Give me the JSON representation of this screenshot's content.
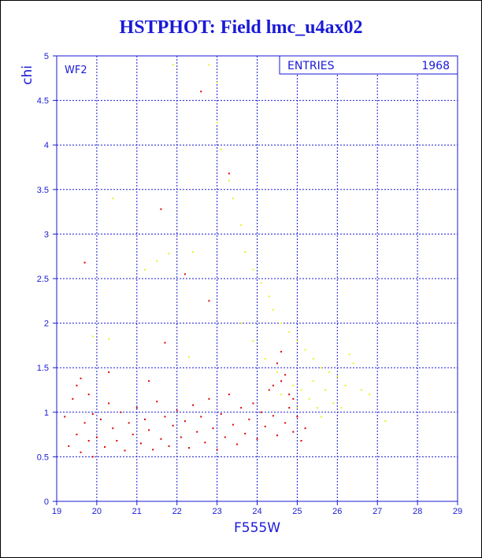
{
  "title": "HSTPHOT: Field lmc_u4ax02",
  "colors": {
    "axis": "#1a1ad6",
    "grid": "#1a1ad6",
    "series_primary": "#dd0000",
    "series_secondary": "#eeee22",
    "title": "#1a1ad6"
  },
  "chart_data": {
    "type": "scatter",
    "title": "HSTPHOT: Field lmc_u4ax02",
    "xlabel": "F555W",
    "ylabel": "chi",
    "xlim": [
      19,
      29
    ],
    "ylim": [
      0,
      5
    ],
    "xticks": [
      "19",
      "20",
      "21",
      "22",
      "23",
      "24",
      "25",
      "26",
      "27",
      "28",
      "29"
    ],
    "yticks": [
      "0",
      "0.5",
      "1",
      "1.5",
      "2",
      "2.5",
      "3",
      "3.5",
      "4",
      "4.5",
      "5"
    ],
    "grid": true,
    "annotation": "WF2",
    "stats_box": {
      "label": "ENTRIES",
      "value": "1968"
    },
    "series": [
      {
        "color": "#dd0000",
        "points": [
          [
            19.2,
            0.95
          ],
          [
            19.3,
            0.62
          ],
          [
            19.4,
            1.15
          ],
          [
            19.5,
            0.75
          ],
          [
            19.5,
            1.3
          ],
          [
            19.6,
            0.55
          ],
          [
            19.7,
            0.88
          ],
          [
            19.8,
            0.68
          ],
          [
            19.8,
            1.2
          ],
          [
            19.9,
            0.98
          ],
          [
            19.9,
            0.5
          ],
          [
            20.0,
            0.72
          ],
          [
            20.1,
            0.92
          ],
          [
            20.2,
            0.61
          ],
          [
            20.3,
            1.1
          ],
          [
            20.4,
            0.82
          ],
          [
            20.5,
            0.68
          ],
          [
            20.6,
            1.0
          ],
          [
            20.7,
            0.57
          ],
          [
            20.8,
            0.88
          ],
          [
            20.9,
            0.75
          ],
          [
            21.0,
            1.05
          ],
          [
            21.1,
            0.65
          ],
          [
            21.2,
            0.92
          ],
          [
            21.3,
            0.8
          ],
          [
            21.4,
            0.58
          ],
          [
            21.5,
            1.12
          ],
          [
            21.6,
            0.7
          ],
          [
            21.7,
            0.95
          ],
          [
            21.8,
            0.62
          ],
          [
            21.9,
            0.85
          ],
          [
            22.0,
            1.02
          ],
          [
            22.1,
            0.72
          ],
          [
            22.2,
            0.9
          ],
          [
            22.3,
            0.6
          ],
          [
            22.4,
            1.08
          ],
          [
            22.5,
            0.78
          ],
          [
            22.6,
            0.95
          ],
          [
            22.7,
            0.66
          ],
          [
            22.8,
            1.15
          ],
          [
            22.9,
            0.82
          ],
          [
            23.0,
            0.58
          ],
          [
            23.1,
            0.98
          ],
          [
            23.2,
            0.72
          ],
          [
            23.3,
            1.2
          ],
          [
            23.4,
            0.86
          ],
          [
            23.5,
            0.64
          ],
          [
            23.6,
            1.05
          ],
          [
            23.7,
            0.76
          ],
          [
            23.8,
            0.92
          ],
          [
            23.9,
            1.1
          ],
          [
            24.0,
            0.7
          ],
          [
            24.1,
            1.0
          ],
          [
            24.2,
            0.84
          ],
          [
            24.3,
            1.25
          ],
          [
            24.4,
            0.96
          ],
          [
            24.5,
            0.74
          ],
          [
            24.6,
            1.35
          ],
          [
            24.7,
            0.88
          ],
          [
            24.8,
            1.05
          ],
          [
            24.9,
            0.78
          ],
          [
            25.0,
            0.95
          ],
          [
            25.1,
            0.68
          ],
          [
            25.2,
            0.82
          ],
          [
            24.5,
            1.55
          ],
          [
            24.6,
            1.68
          ],
          [
            24.7,
            1.42
          ],
          [
            24.8,
            1.2
          ],
          [
            24.4,
            1.3
          ],
          [
            24.9,
            1.15
          ],
          [
            19.7,
            2.68
          ],
          [
            21.6,
            3.28
          ],
          [
            22.6,
            4.6
          ],
          [
            22.8,
            2.25
          ],
          [
            23.3,
            3.68
          ],
          [
            21.7,
            1.78
          ],
          [
            22.2,
            2.55
          ],
          [
            19.6,
            1.38
          ],
          [
            20.3,
            1.45
          ],
          [
            21.3,
            1.35
          ]
        ]
      },
      {
        "color": "#eeee22",
        "points": [
          [
            22.8,
            4.9
          ],
          [
            23.0,
            4.25
          ],
          [
            23.1,
            3.95
          ],
          [
            23.3,
            3.6
          ],
          [
            23.4,
            3.4
          ],
          [
            23.6,
            3.1
          ],
          [
            23.7,
            2.8
          ],
          [
            23.9,
            2.6
          ],
          [
            24.1,
            2.45
          ],
          [
            24.3,
            2.3
          ],
          [
            24.4,
            2.15
          ],
          [
            24.6,
            2.0
          ],
          [
            24.8,
            1.9
          ],
          [
            25.0,
            1.8
          ],
          [
            25.2,
            1.7
          ],
          [
            25.4,
            1.6
          ],
          [
            25.6,
            1.5
          ],
          [
            25.8,
            1.45
          ],
          [
            26.0,
            1.4
          ],
          [
            26.2,
            1.3
          ],
          [
            26.4,
            1.55
          ],
          [
            26.6,
            1.25
          ],
          [
            26.8,
            1.2
          ],
          [
            27.2,
            0.9
          ],
          [
            25.3,
            1.15
          ],
          [
            25.5,
            1.05
          ],
          [
            25.7,
            1.25
          ],
          [
            25.9,
            1.1
          ],
          [
            26.1,
            1.05
          ],
          [
            25.4,
            1.35
          ],
          [
            24.6,
            1.2
          ],
          [
            24.9,
            1.3
          ],
          [
            25.1,
            1.25
          ],
          [
            24.2,
            1.6
          ],
          [
            23.9,
            1.8
          ],
          [
            23.6,
            2.0
          ],
          [
            24.5,
            1.45
          ],
          [
            25.0,
            1.05
          ],
          [
            25.6,
            0.95
          ],
          [
            26.3,
            1.65
          ],
          [
            21.2,
            2.6
          ],
          [
            21.5,
            2.7
          ],
          [
            21.8,
            2.78
          ],
          [
            22.4,
            2.8
          ],
          [
            20.4,
            3.4
          ],
          [
            21.9,
            4.9
          ],
          [
            23.0,
            4.7
          ],
          [
            19.9,
            1.85
          ],
          [
            20.3,
            1.82
          ],
          [
            22.3,
            1.62
          ]
        ]
      }
    ]
  }
}
